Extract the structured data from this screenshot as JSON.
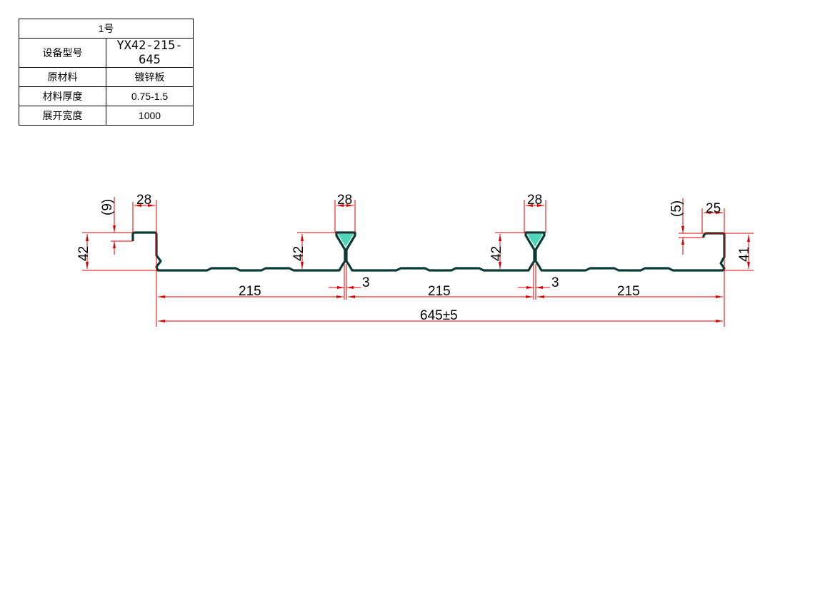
{
  "spec_table": {
    "title": "1号",
    "rows": [
      {
        "label": "设备型号",
        "value": "YX42-215-645"
      },
      {
        "label": "原材料",
        "value": "镀锌板"
      },
      {
        "label": "材料厚度",
        "value": "0.75-1.5"
      },
      {
        "label": "展开宽度",
        "value": "1000"
      }
    ]
  },
  "drawing": {
    "colors": {
      "dimension": "#e00000",
      "profile": "#0a3a34",
      "profile_fill": "#4fd6b8"
    },
    "dims": {
      "left_lip": "(9)",
      "left_flange": "28",
      "left_height": "42",
      "rib1_top": "28",
      "rib1_height": "42",
      "rib1_gap": "3",
      "rib2_top": "28",
      "rib2_height": "42",
      "rib2_gap": "3",
      "right_lip": "(5)",
      "right_flange": "25",
      "right_height": "41",
      "pan1": "215",
      "pan2": "215",
      "pan3": "215",
      "total": "645±5"
    }
  }
}
